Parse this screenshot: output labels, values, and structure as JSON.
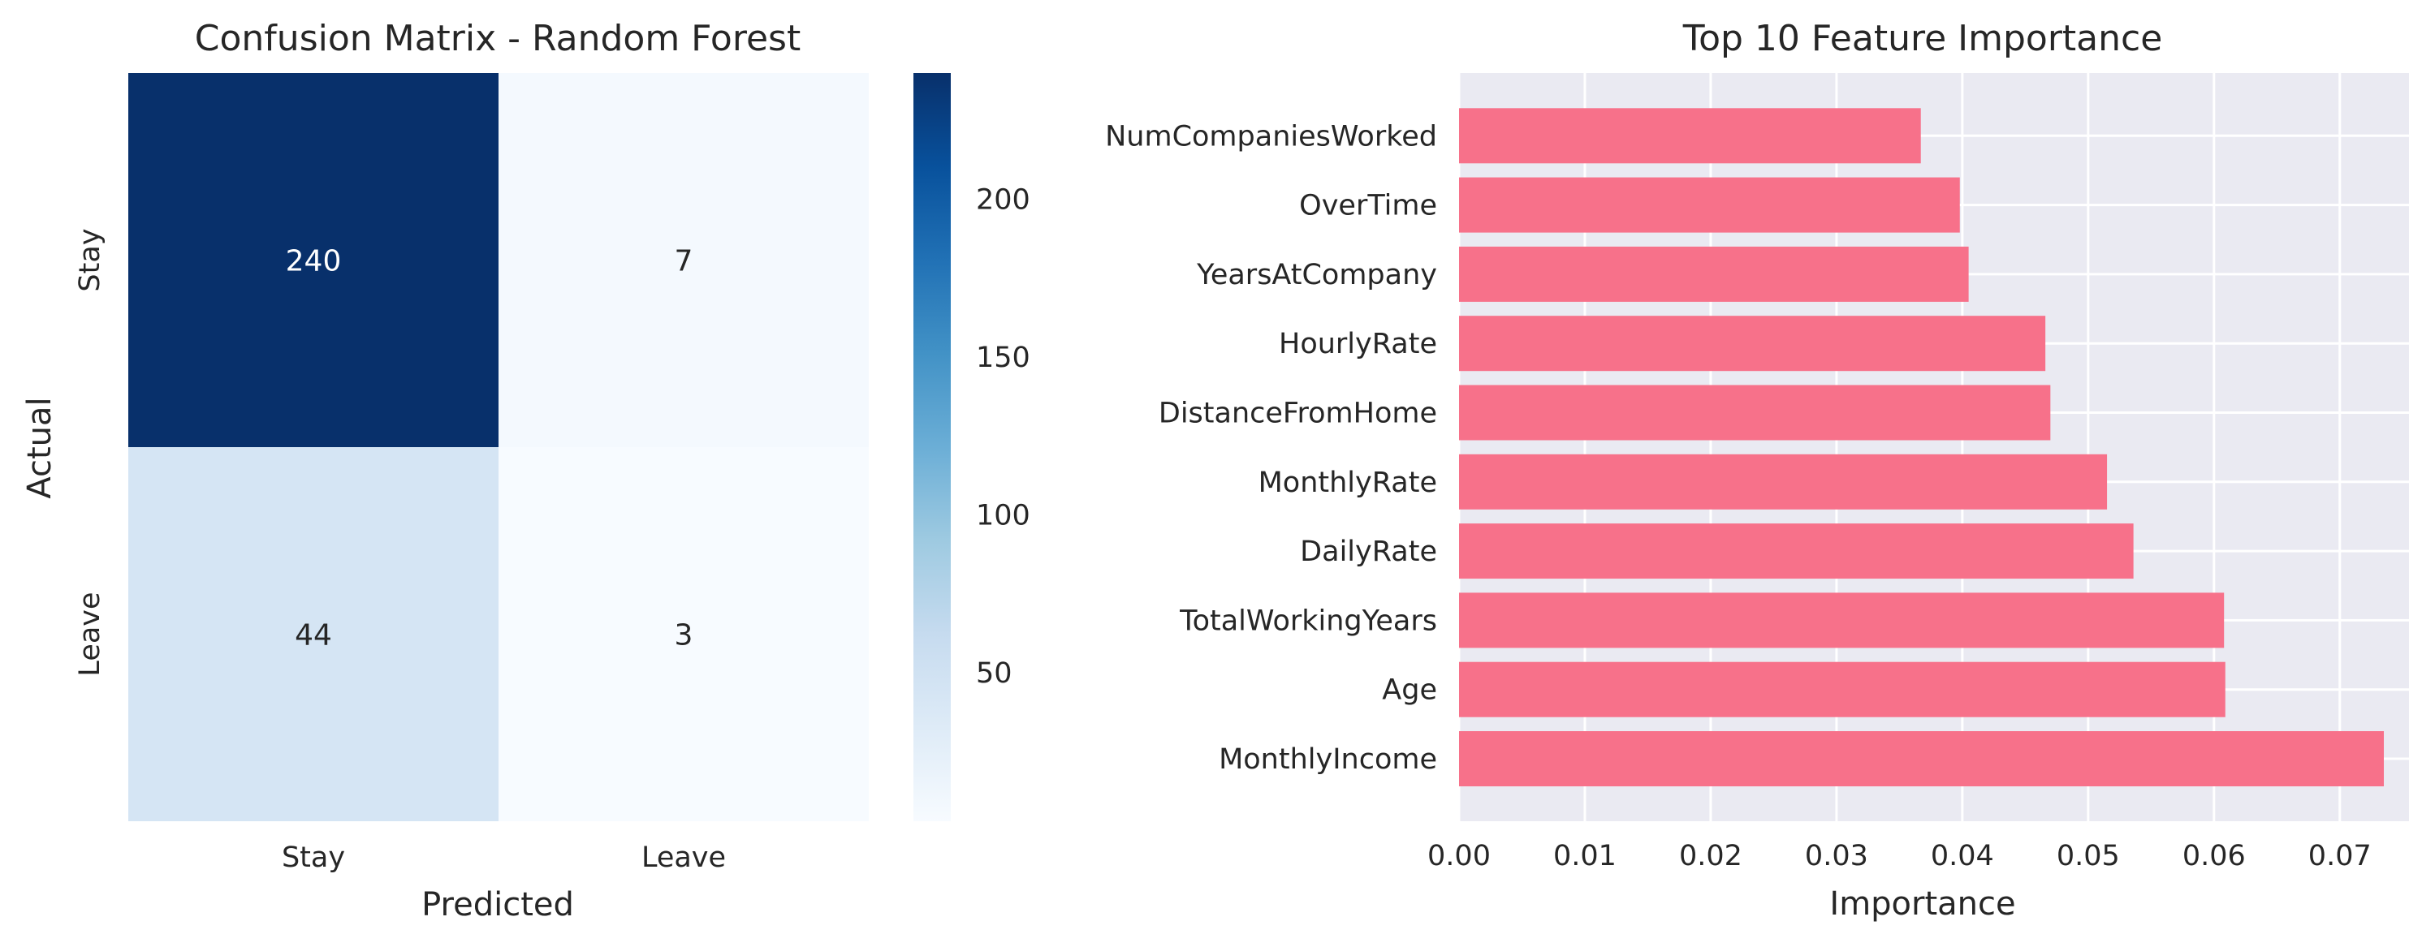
{
  "chart_data": [
    {
      "type": "heatmap",
      "title": "Confusion Matrix - Random Forest",
      "xlabel": "Predicted",
      "ylabel": "Actual",
      "x_categories": [
        "Stay",
        "Leave"
      ],
      "y_categories": [
        "Stay",
        "Leave"
      ],
      "values": [
        [
          240,
          7
        ],
        [
          44,
          3
        ]
      ],
      "colormap": "Blues",
      "colorbar": {
        "range": [
          3,
          240
        ],
        "ticks": [
          50,
          100,
          150,
          200
        ]
      }
    },
    {
      "type": "bar",
      "orientation": "horizontal",
      "title": "Top 10 Feature Importance",
      "xlabel": "Importance",
      "ylabel": "",
      "categories": [
        "MonthlyIncome",
        "Age",
        "TotalWorkingYears",
        "DailyRate",
        "MonthlyRate",
        "DistanceFromHome",
        "HourlyRate",
        "YearsAtCompany",
        "OverTime",
        "NumCompaniesWorked"
      ],
      "values": [
        0.0735,
        0.0609,
        0.0608,
        0.0536,
        0.0515,
        0.047,
        0.0466,
        0.0405,
        0.0398,
        0.0367
      ],
      "xlim": [
        0,
        0.0755
      ],
      "xticks": [
        "0.00",
        "0.01",
        "0.02",
        "0.03",
        "0.04",
        "0.05",
        "0.06",
        "0.07"
      ],
      "bar_color": "#f7718a",
      "background": "#eaeaf2",
      "grid": true
    }
  ]
}
